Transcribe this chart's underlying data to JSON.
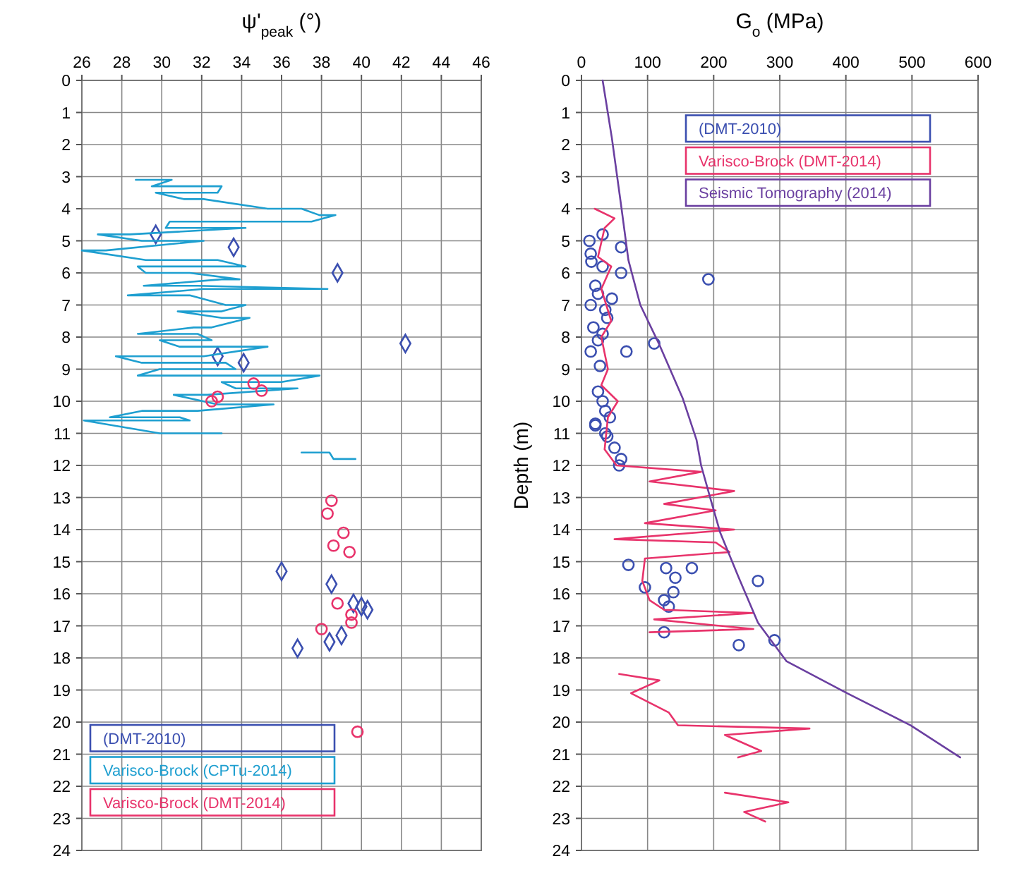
{
  "chart_data": [
    {
      "type": "scatter",
      "xlabel": "ψ'$_{peak}$ (°)",
      "xlim": [
        26,
        46
      ],
      "xticks": [
        26,
        28,
        30,
        32,
        34,
        36,
        38,
        40,
        42,
        44,
        46
      ],
      "ylim": [
        24,
        0
      ],
      "yticks": [
        0,
        1,
        2,
        3,
        4,
        5,
        6,
        7,
        8,
        9,
        10,
        11,
        12,
        13,
        14,
        15,
        16,
        17,
        18,
        19,
        20,
        21,
        22,
        23,
        24
      ],
      "grid": true,
      "legend": "bottom left",
      "series": [
        {
          "name": "(DMT-2010)",
          "color": "#3b4fb0",
          "marker": "diamond",
          "x": [
            29.7,
            33.6,
            38.8,
            42.2,
            32.8,
            34.1,
            36.0,
            38.5,
            39.6,
            40.0,
            40.3,
            39.0,
            38.4,
            36.8
          ],
          "values": [
            4.8,
            5.2,
            6.0,
            8.2,
            8.6,
            8.8,
            15.3,
            15.7,
            16.3,
            16.4,
            16.5,
            17.3,
            17.5,
            17.7
          ]
        },
        {
          "name": "Varisco-Brock (CPTu-2014)",
          "type": "line",
          "color": "#1e9fd0",
          "marker": "none",
          "x": [
            28.7,
            30.5,
            29.5,
            33.0,
            32.8,
            29.7,
            31.1,
            32.1,
            35.3,
            37.0,
            37.9,
            38.7,
            37.5,
            30.4,
            30.2,
            34.2,
            28.4,
            26.8,
            29.0,
            32.1,
            27.2,
            26.0,
            29.2,
            32.8,
            34.2,
            28.8,
            29.2,
            31.4,
            33.9,
            33.0,
            29.1,
            31.8,
            38.3,
            32.1,
            28.3,
            31.4,
            33.2,
            34.2,
            33.0,
            30.8,
            33.0,
            34.4,
            32.5,
            31.6,
            28.8,
            31.8,
            32.5,
            29.9,
            30.9,
            35.3,
            32.1,
            27.7,
            29.0,
            33.2,
            33.7,
            29.9,
            28.8,
            37.9,
            36.0,
            33.0,
            33.7,
            36.8,
            32.3,
            30.6,
            32.8,
            35.6,
            31.8,
            29.0,
            27.4,
            30.9,
            31.4,
            26.1,
            29.9,
            33.0,
            null,
            37.0,
            38.4,
            38.6,
            39.7
          ],
          "values": [
            3.1,
            3.1,
            3.3,
            3.3,
            3.5,
            3.5,
            3.7,
            3.7,
            4.0,
            4.0,
            4.2,
            4.2,
            4.4,
            4.4,
            4.6,
            4.6,
            4.8,
            4.8,
            5.0,
            5.0,
            5.3,
            5.3,
            5.6,
            5.6,
            5.8,
            5.8,
            6.0,
            6.0,
            6.2,
            6.2,
            6.4,
            6.4,
            6.5,
            6.5,
            6.7,
            6.7,
            7.0,
            7.0,
            7.2,
            7.2,
            7.4,
            7.4,
            7.7,
            7.7,
            7.9,
            7.9,
            8.1,
            8.1,
            8.3,
            8.3,
            8.6,
            8.6,
            8.8,
            8.8,
            9.0,
            9.0,
            9.2,
            9.2,
            9.4,
            9.4,
            9.6,
            9.6,
            9.8,
            9.8,
            10.1,
            10.1,
            10.3,
            10.3,
            10.5,
            10.5,
            10.6,
            10.6,
            11.0,
            11.0,
            null,
            11.6,
            11.6,
            11.8,
            11.8
          ]
        },
        {
          "name": "Varisco-Brock (DMT-2014)",
          "color": "#e8336b",
          "marker": "circle",
          "x": [
            34.6,
            35.0,
            32.8,
            32.5,
            38.5,
            38.3,
            39.1,
            38.6,
            39.4,
            38.8,
            39.5,
            39.5,
            38.0,
            39.8
          ],
          "values": [
            9.45,
            9.67,
            9.86,
            10.0,
            13.1,
            13.5,
            14.1,
            14.5,
            14.7,
            16.3,
            16.65,
            16.9,
            17.1,
            20.3
          ]
        }
      ]
    },
    {
      "type": "scatter",
      "xlabel": "G$_{o}$ (MPa)",
      "ylabel": "Depth (m)",
      "xlim": [
        0,
        600
      ],
      "xticks": [
        0,
        100,
        200,
        300,
        400,
        500,
        600
      ],
      "ylim": [
        24,
        0
      ],
      "yticks": [
        0,
        1,
        2,
        3,
        4,
        5,
        6,
        7,
        8,
        9,
        10,
        11,
        12,
        13,
        14,
        15,
        16,
        17,
        18,
        19,
        20,
        21,
        22,
        23,
        24
      ],
      "grid": true,
      "legend": "top",
      "series": [
        {
          "name": "(DMT-2010)",
          "color": "#3b4fb0",
          "marker": "circle",
          "x": [
            12,
            32,
            60,
            14,
            15,
            32,
            60,
            192,
            21,
            25,
            46,
            14,
            36,
            39,
            18,
            32,
            25,
            110,
            68,
            14,
            28,
            25,
            32,
            36,
            43,
            21,
            36,
            21,
            39,
            50,
            60,
            57,
            71,
            128,
            142,
            167,
            96,
            139,
            125,
            132,
            267,
            125,
            238,
            292
          ],
          "values": [
            5.0,
            4.8,
            5.2,
            5.4,
            5.65,
            5.8,
            6.0,
            6.2,
            6.4,
            6.65,
            6.8,
            7.0,
            7.15,
            7.4,
            7.7,
            7.9,
            8.1,
            8.2,
            8.45,
            8.45,
            8.9,
            9.7,
            10.0,
            10.3,
            10.5,
            10.7,
            11.0,
            10.75,
            11.1,
            11.45,
            11.8,
            12.0,
            15.1,
            15.2,
            15.5,
            15.2,
            15.8,
            15.95,
            16.2,
            16.4,
            15.6,
            17.2,
            17.6,
            17.45
          ]
        },
        {
          "name": "Varisco-Brock (DMT-2014)",
          "type": "line",
          "color": "#e8336b",
          "marker": "none",
          "x": [
            20,
            50,
            35,
            25,
            45,
            30,
            45,
            30,
            40,
            30,
            55,
            40,
            35,
            53,
            181,
            103,
            231,
            125,
            203,
            96,
            231,
            50,
            203,
            224,
            96,
            92,
            103,
            125,
            260,
            110,
            260,
            103,
            null,
            57,
            118,
            75,
            132,
            146,
            345,
            217,
            272,
            237,
            null,
            217,
            313,
            246,
            278
          ],
          "values": [
            4.0,
            4.3,
            4.6,
            5.5,
            5.8,
            6.5,
            7.5,
            8.0,
            9.0,
            9.5,
            10.0,
            10.5,
            11.5,
            12.0,
            12.2,
            12.5,
            12.8,
            13.2,
            13.4,
            13.8,
            14.0,
            14.3,
            14.4,
            14.7,
            14.9,
            15.6,
            16.2,
            16.5,
            16.6,
            16.8,
            17.1,
            17.2,
            null,
            18.5,
            18.7,
            19.1,
            19.7,
            20.1,
            20.2,
            20.4,
            20.9,
            21.1,
            null,
            22.2,
            22.5,
            22.8,
            23.1
          ]
        },
        {
          "name": "Seismic Tomography (2014)",
          "type": "line",
          "color": "#6a3fa0",
          "marker": "none",
          "x": [
            32,
            46,
            60,
            71,
            89,
            117,
            153,
            174,
            181,
            196,
            210,
            238,
            267,
            310,
            402,
            498,
            573
          ],
          "values": [
            0,
            1.8,
            3.9,
            5.6,
            7.0,
            8.2,
            9.9,
            11.2,
            12.0,
            13.1,
            14.1,
            15.5,
            16.9,
            18.1,
            19.1,
            20.1,
            21.1
          ]
        }
      ]
    }
  ]
}
